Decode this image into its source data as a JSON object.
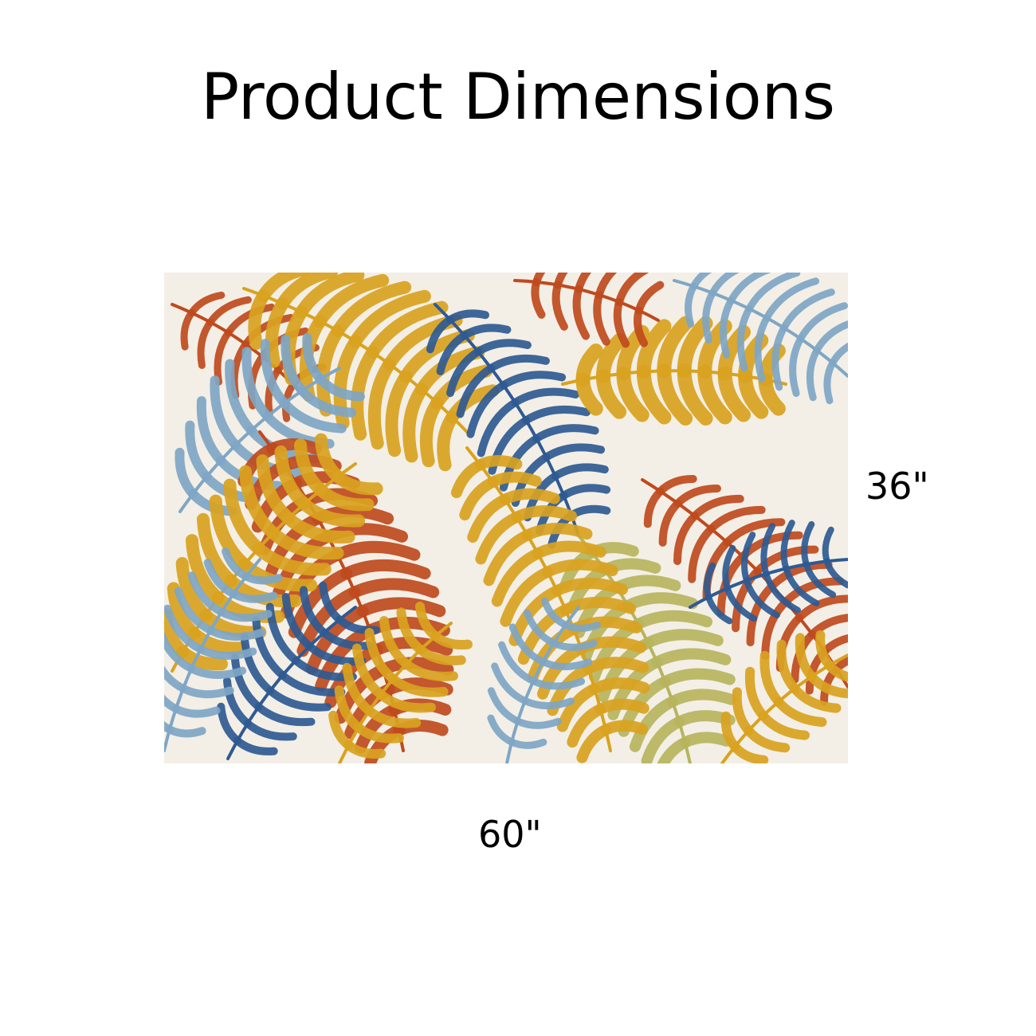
{
  "title": "Product Dimensions",
  "dimensions": {
    "height_label": "36\"",
    "width_label": "60\""
  },
  "rug": {
    "icon": "tropical-palm-leaf-rug-image",
    "colors": {
      "background": "#f3efe6",
      "orange": "#d9a21f",
      "red": "#bf4a1e",
      "navy": "#2f5a93",
      "light_blue": "#7fa6c4",
      "olive": "#b7b45e"
    }
  }
}
